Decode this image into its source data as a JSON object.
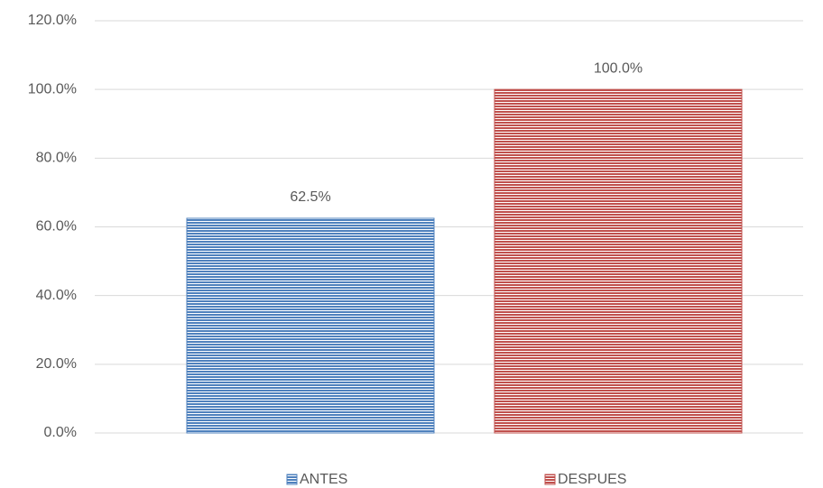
{
  "chart_data": {
    "type": "bar",
    "categories": [
      "ANTES",
      "DESPUES"
    ],
    "values": [
      62.5,
      100
    ],
    "value_labels": [
      "62.5%",
      "100.0%"
    ],
    "colors": [
      "#4f81bd",
      "#c0504d"
    ],
    "ylim": [
      0,
      120
    ],
    "yticks": [
      {
        "value": 0,
        "label": "0.0%"
      },
      {
        "value": 20,
        "label": "20.0%"
      },
      {
        "value": 40,
        "label": "40.0%"
      },
      {
        "value": 60,
        "label": "60.0%"
      },
      {
        "value": 80,
        "label": "80.0%"
      },
      {
        "value": 100,
        "label": "100.0%"
      },
      {
        "value": 120,
        "label": "120.0%"
      }
    ],
    "grid": true,
    "legend": "bottom"
  }
}
